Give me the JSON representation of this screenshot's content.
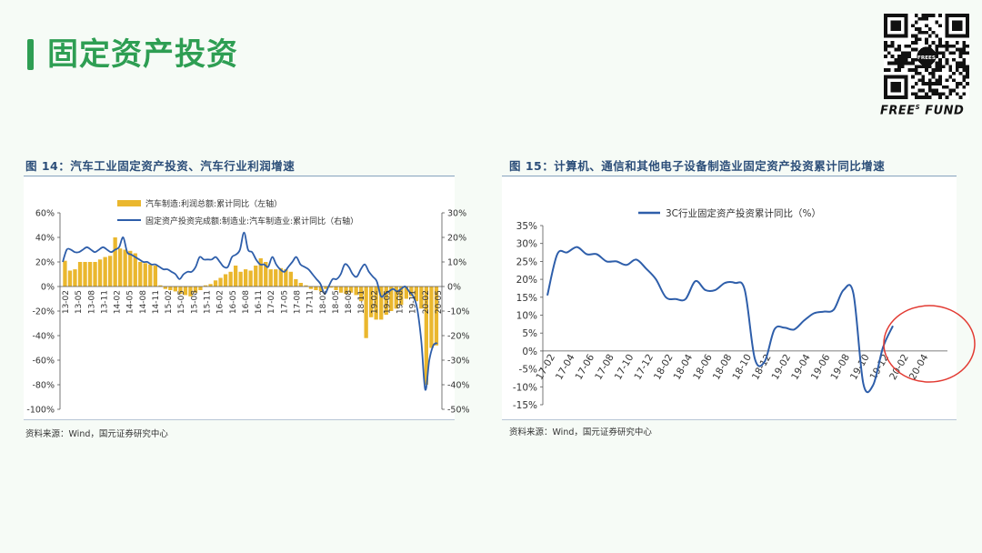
{
  "page": {
    "title": "固定资产投资",
    "brand": "FREE",
    "brand_sup": "S",
    "brand_tail": " FUND",
    "qr_center_text": "FREES"
  },
  "left_figure": {
    "title": "图 14：汽车工业固定资产投资、汽车行业利润增速",
    "source": "资料来源：Wind，国元证券研究中心"
  },
  "right_figure": {
    "title": "图 15：计算机、通信和其他电子设备制造业固定资产投资累计同比增速",
    "source": "资料来源：Wind，国元证券研究中心"
  },
  "chart_data": [
    {
      "type": "bar+line",
      "legend_position": "top",
      "grid": false,
      "x_labels": [
        "13-02",
        "13-05",
        "13-08",
        "13-11",
        "14-02",
        "14-05",
        "14-08",
        "14-11",
        "15-02",
        "15-05",
        "15-08",
        "15-11",
        "16-02",
        "16-05",
        "16-08",
        "16-11",
        "17-02",
        "17-05",
        "17-08",
        "17-11",
        "18-02",
        "18-05",
        "18-08",
        "18-11",
        "19-02",
        "19-05",
        "19-08",
        "19-11",
        "20-02",
        "20-05"
      ],
      "y_left": {
        "ticks": [
          "60%",
          "40%",
          "20%",
          "0%",
          "-20%",
          "-40%",
          "-60%",
          "-80%",
          "-100%"
        ],
        "range": [
          -100,
          60
        ]
      },
      "y_right": {
        "ticks": [
          "30%",
          "20%",
          "10%",
          "0%",
          "-10%",
          "-20%",
          "-30%",
          "-40%",
          "-50%"
        ],
        "range": [
          -50,
          30
        ]
      },
      "series": [
        {
          "name": "汽车制造:利润总额:累计同比（左轴）",
          "kind": "bar",
          "axis": "left",
          "color": "#eab72e",
          "values": [
            21,
            13,
            14,
            20,
            20,
            20,
            20,
            22,
            24,
            25,
            40,
            31,
            30,
            29,
            27,
            20,
            19,
            18,
            17,
            1,
            -2,
            -3,
            -4,
            -6,
            -7,
            -8,
            -5,
            -3,
            1,
            2,
            5,
            7,
            10,
            12,
            17,
            12,
            14,
            13,
            17,
            23,
            20,
            14,
            14,
            15,
            14,
            12,
            6,
            3,
            1,
            -2,
            -3,
            -4,
            -2,
            -1,
            -3,
            -5,
            -6,
            -5,
            -7,
            -12,
            -42,
            -25,
            -27,
            -27,
            -23,
            -20,
            -18,
            -15,
            -10,
            -8,
            -12,
            -18,
            -80,
            -50,
            -48
          ]
        },
        {
          "name": "固定资产投资完成额:制造业:汽车制造业:累计同比（右轴）",
          "kind": "line",
          "axis": "right",
          "color": "#2e5eaa",
          "values": [
            10,
            15,
            15,
            14,
            14,
            15,
            16,
            15,
            14,
            15,
            16,
            15,
            14,
            15,
            16,
            20,
            14,
            13,
            12,
            11,
            10,
            10,
            9,
            9,
            8,
            7,
            7,
            6,
            5,
            3,
            5,
            6,
            6,
            8,
            12,
            11,
            11,
            11,
            12,
            10,
            8,
            8,
            12,
            13,
            15,
            22,
            15,
            14,
            11,
            9,
            9,
            8,
            12,
            9,
            7,
            6,
            8,
            10,
            12,
            9,
            8,
            7,
            5,
            3,
            1,
            -3,
            0,
            3,
            3,
            5,
            9,
            8,
            5,
            4,
            7,
            9,
            6,
            4,
            2,
            -4,
            -3,
            -2,
            -1,
            -2,
            -1,
            0,
            -2,
            -4,
            -9,
            -22,
            -42,
            -30,
            -24,
            -23
          ]
        }
      ]
    },
    {
      "type": "line",
      "legend_position": "top",
      "grid": false,
      "x_labels": [
        "17-02",
        "17-04",
        "17-06",
        "17-08",
        "17-10",
        "17-12",
        "18-02",
        "18-04",
        "18-06",
        "18-08",
        "18-10",
        "18-12",
        "19-02",
        "19-04",
        "19-06",
        "19-08",
        "19-10",
        "19-12",
        "20-02",
        "20-04"
      ],
      "y_ticks": [
        "35%",
        "30%",
        "25%",
        "20%",
        "15%",
        "10%",
        "5%",
        "0%",
        "-5%",
        "-10%",
        "-15%"
      ],
      "y_range": [
        -15,
        35
      ],
      "series": [
        {
          "name": "3C行业固定资产投资累计同比（%）",
          "color": "#2e5eaa",
          "values": [
            15.5,
            27,
            27.5,
            29,
            27,
            27,
            25,
            25,
            24,
            25.5,
            23,
            20,
            15,
            14.5,
            14.5,
            19.5,
            17,
            17,
            19,
            19,
            17,
            -2,
            -3,
            6,
            6.5,
            6,
            8.5,
            10.5,
            11,
            11.5,
            17,
            16,
            -9,
            -9.5,
            1,
            7
          ]
        }
      ],
      "annotation": "red-ellipse"
    }
  ]
}
